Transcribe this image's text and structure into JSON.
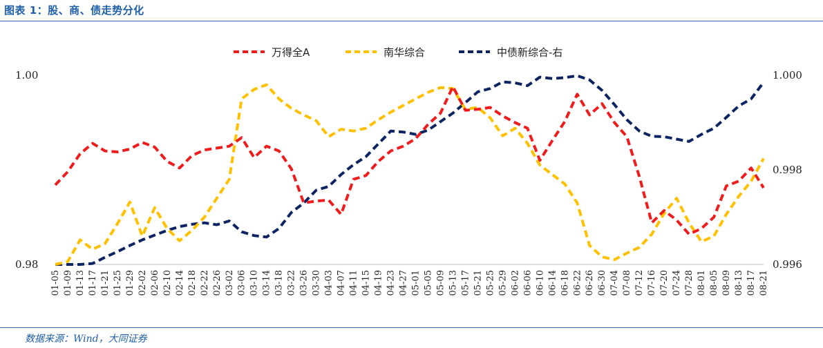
{
  "figure": {
    "title": "图表 1：股、商、债走势分化",
    "source": "数据来源：Wind，大同证券"
  },
  "colors": {
    "wind_a": "#ee1c1c",
    "nanhua": "#ffc000",
    "bond": "#0c2461",
    "frame_blue": "#2f6db5"
  },
  "chart_data": {
    "type": "line",
    "title": "",
    "legend_position": "top-center",
    "grid": false,
    "left_axis": {
      "ylim": [
        0.98,
        1.0
      ],
      "tick_labels": [
        "1.00",
        "0.98"
      ]
    },
    "right_axis": {
      "ylim": [
        0.996,
        1.0
      ],
      "tick_labels": [
        "1.000",
        "0.998",
        "0.996"
      ]
    },
    "x_tick_labels": [
      "01-05",
      "01-09",
      "01-13",
      "01-17",
      "01-21",
      "01-25",
      "01-29",
      "02-02",
      "02-06",
      "02-10",
      "02-14",
      "02-18",
      "02-22",
      "02-26",
      "03-02",
      "03-06",
      "03-10",
      "03-14",
      "03-18",
      "03-22",
      "03-26",
      "03-30",
      "04-03",
      "04-07",
      "04-11",
      "04-15",
      "04-19",
      "04-23",
      "04-27",
      "05-01",
      "05-05",
      "05-09",
      "05-13",
      "05-17",
      "05-21",
      "05-25",
      "05-29",
      "06-02",
      "06-06",
      "06-10",
      "06-14",
      "06-18",
      "06-22",
      "06-26",
      "06-30",
      "07-04",
      "07-08",
      "07-12",
      "07-16",
      "07-20",
      "07-24",
      "07-28",
      "08-01",
      "08-05",
      "08-09",
      "08-13",
      "08-17",
      "08-21"
    ],
    "series": [
      {
        "name": "万得全A",
        "axis": "left",
        "values": [
          0.9884,
          0.9898,
          0.9917,
          0.9928,
          0.992,
          0.9919,
          0.9922,
          0.9929,
          0.9924,
          0.9909,
          0.9902,
          0.9915,
          0.9921,
          0.9923,
          0.9925,
          0.9934,
          0.9913,
          0.9925,
          0.992,
          0.9901,
          0.9865,
          0.9867,
          0.9868,
          0.9853,
          0.989,
          0.9894,
          0.9909,
          0.992,
          0.9925,
          0.9933,
          0.9948,
          0.996,
          0.9988,
          0.9963,
          0.9964,
          0.9966,
          0.9957,
          0.995,
          0.9944,
          0.991,
          0.9931,
          0.9951,
          0.998,
          0.9958,
          0.997,
          0.995,
          0.9935,
          0.9893,
          0.9844,
          0.9857,
          0.9847,
          0.9832,
          0.9838,
          0.985,
          0.9883,
          0.9888,
          0.9902,
          0.9881
        ]
      },
      {
        "name": "南华综合",
        "axis": "left",
        "values": [
          0.98,
          0.9803,
          0.9826,
          0.9816,
          0.9822,
          0.9843,
          0.9866,
          0.983,
          0.986,
          0.9838,
          0.9825,
          0.9836,
          0.985,
          0.987,
          0.989,
          0.9975,
          0.9985,
          0.999,
          0.9975,
          0.9965,
          0.9958,
          0.9952,
          0.9935,
          0.9943,
          0.9941,
          0.9944,
          0.9953,
          0.9961,
          0.9968,
          0.9975,
          0.9982,
          0.9987,
          0.9986,
          0.9964,
          0.9966,
          0.9955,
          0.9936,
          0.9944,
          0.9928,
          0.9905,
          0.9895,
          0.9885,
          0.9865,
          0.982,
          0.9808,
          0.9805,
          0.9812,
          0.9818,
          0.9832,
          0.9854,
          0.987,
          0.9844,
          0.9824,
          0.983,
          0.9853,
          0.9872,
          0.9888,
          0.9912
        ]
      },
      {
        "name": "中债新综合-右",
        "axis": "right",
        "values": [
          0.99555,
          0.99575,
          0.9959,
          0.99602,
          0.99615,
          0.99627,
          0.9964,
          0.99652,
          0.99662,
          0.99672,
          0.9968,
          0.99685,
          0.99688,
          0.99684,
          0.99692,
          0.99669,
          0.99661,
          0.99658,
          0.99676,
          0.9971,
          0.9973,
          0.99757,
          0.99765,
          0.9979,
          0.99811,
          0.99828,
          0.99855,
          0.99882,
          0.9988,
          0.99875,
          0.99884,
          0.99902,
          0.9992,
          0.99942,
          0.99965,
          0.99972,
          0.99986,
          0.99984,
          0.99978,
          0.99996,
          0.99993,
          0.99995,
          0.99999,
          0.9999,
          0.99968,
          0.99938,
          0.99906,
          0.99882,
          0.99871,
          0.9987,
          0.99865,
          0.9986,
          0.99875,
          0.99888,
          0.99911,
          0.99935,
          0.9995,
          0.99985
        ]
      }
    ]
  }
}
